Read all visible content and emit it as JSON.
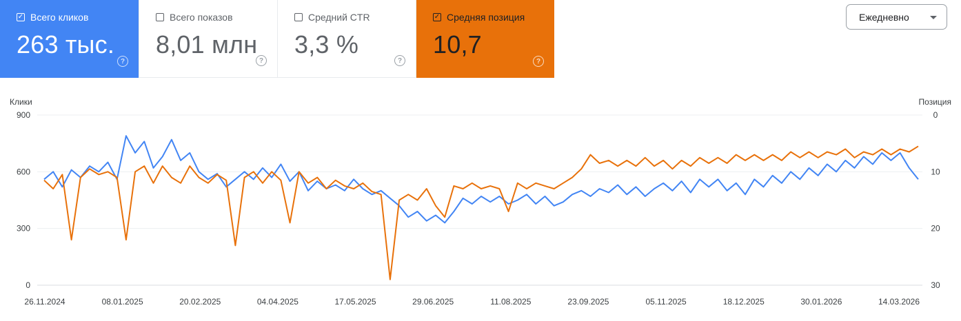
{
  "metrics": [
    {
      "label": "Всего кликов",
      "value": "263 тыс.",
      "checked": true,
      "color": "#4285f4"
    },
    {
      "label": "Всего показов",
      "value": "8,01 млн",
      "checked": false,
      "color": "#ffffff"
    },
    {
      "label": "Средний CTR",
      "value": "3,3 %",
      "checked": false,
      "color": "#ffffff"
    },
    {
      "label": "Средняя позиция",
      "value": "10,7",
      "checked": true,
      "color": "#e8710a"
    }
  ],
  "help_icon": "help-circle-icon",
  "dropdown": {
    "label": "Ежедневно",
    "icon": "caret-down-icon"
  },
  "chart_data": {
    "type": "line",
    "left_axis_title": "Клики",
    "right_axis_title": "Позиция",
    "left_ticks": [
      "900",
      "600",
      "300",
      "0"
    ],
    "right_ticks": [
      "0",
      "10",
      "20",
      "30"
    ],
    "ylim_left": [
      0,
      900
    ],
    "ylim_right_inverted": [
      0,
      30
    ],
    "x_ticks": [
      "26.11.2024",
      "08.01.2025",
      "20.02.2025",
      "04.04.2025",
      "17.05.2025",
      "29.06.2025",
      "11.08.2025",
      "23.09.2025",
      "05.11.2025",
      "18.12.2025",
      "30.01.2026",
      "14.03.2026"
    ],
    "x_range": [
      "2024-11-26",
      "2026-03-21"
    ],
    "grid": true,
    "series": [
      {
        "axis": "left",
        "color": "#4285f4",
        "points": [
          [
            "2024-11-26",
            560
          ],
          [
            "2024-12-01",
            600
          ],
          [
            "2024-12-06",
            520
          ],
          [
            "2024-12-11",
            610
          ],
          [
            "2024-12-16",
            570
          ],
          [
            "2024-12-21",
            630
          ],
          [
            "2024-12-26",
            600
          ],
          [
            "2024-12-31",
            650
          ],
          [
            "2025-01-05",
            560
          ],
          [
            "2025-01-10",
            790
          ],
          [
            "2025-01-15",
            700
          ],
          [
            "2025-01-20",
            760
          ],
          [
            "2025-01-25",
            620
          ],
          [
            "2025-01-30",
            680
          ],
          [
            "2025-02-04",
            770
          ],
          [
            "2025-02-09",
            660
          ],
          [
            "2025-02-14",
            700
          ],
          [
            "2025-02-19",
            600
          ],
          [
            "2025-02-24",
            560
          ],
          [
            "2025-03-01",
            590
          ],
          [
            "2025-03-06",
            520
          ],
          [
            "2025-03-11",
            560
          ],
          [
            "2025-03-16",
            600
          ],
          [
            "2025-03-21",
            560
          ],
          [
            "2025-03-26",
            620
          ],
          [
            "2025-03-31",
            570
          ],
          [
            "2025-04-05",
            640
          ],
          [
            "2025-04-10",
            550
          ],
          [
            "2025-04-15",
            600
          ],
          [
            "2025-04-20",
            500
          ],
          [
            "2025-04-25",
            550
          ],
          [
            "2025-04-30",
            510
          ],
          [
            "2025-05-05",
            530
          ],
          [
            "2025-05-10",
            500
          ],
          [
            "2025-05-15",
            560
          ],
          [
            "2025-05-20",
            510
          ],
          [
            "2025-05-25",
            480
          ],
          [
            "2025-05-30",
            500
          ],
          [
            "2025-06-04",
            460
          ],
          [
            "2025-06-09",
            420
          ],
          [
            "2025-06-14",
            360
          ],
          [
            "2025-06-19",
            390
          ],
          [
            "2025-06-24",
            340
          ],
          [
            "2025-06-29",
            370
          ],
          [
            "2025-07-04",
            330
          ],
          [
            "2025-07-09",
            390
          ],
          [
            "2025-07-14",
            460
          ],
          [
            "2025-07-19",
            430
          ],
          [
            "2025-07-24",
            470
          ],
          [
            "2025-07-29",
            440
          ],
          [
            "2025-08-03",
            470
          ],
          [
            "2025-08-08",
            430
          ],
          [
            "2025-08-13",
            450
          ],
          [
            "2025-08-18",
            480
          ],
          [
            "2025-08-23",
            430
          ],
          [
            "2025-08-28",
            470
          ],
          [
            "2025-09-02",
            420
          ],
          [
            "2025-09-07",
            440
          ],
          [
            "2025-09-12",
            480
          ],
          [
            "2025-09-17",
            500
          ],
          [
            "2025-09-22",
            470
          ],
          [
            "2025-09-27",
            510
          ],
          [
            "2025-10-02",
            490
          ],
          [
            "2025-10-07",
            530
          ],
          [
            "2025-10-12",
            480
          ],
          [
            "2025-10-17",
            520
          ],
          [
            "2025-10-22",
            470
          ],
          [
            "2025-10-27",
            510
          ],
          [
            "2025-11-01",
            540
          ],
          [
            "2025-11-06",
            500
          ],
          [
            "2025-11-11",
            550
          ],
          [
            "2025-11-16",
            490
          ],
          [
            "2025-11-21",
            560
          ],
          [
            "2025-11-26",
            520
          ],
          [
            "2025-12-01",
            560
          ],
          [
            "2025-12-06",
            500
          ],
          [
            "2025-12-11",
            540
          ],
          [
            "2025-12-16",
            480
          ],
          [
            "2025-12-21",
            560
          ],
          [
            "2025-12-26",
            520
          ],
          [
            "2025-12-31",
            580
          ],
          [
            "2026-01-05",
            540
          ],
          [
            "2026-01-10",
            600
          ],
          [
            "2026-01-15",
            560
          ],
          [
            "2026-01-20",
            620
          ],
          [
            "2026-01-25",
            580
          ],
          [
            "2026-01-30",
            640
          ],
          [
            "2026-02-04",
            600
          ],
          [
            "2026-02-09",
            660
          ],
          [
            "2026-02-14",
            620
          ],
          [
            "2026-02-19",
            680
          ],
          [
            "2026-02-24",
            640
          ],
          [
            "2026-03-01",
            700
          ],
          [
            "2026-03-06",
            660
          ],
          [
            "2026-03-11",
            700
          ],
          [
            "2026-03-16",
            620
          ],
          [
            "2026-03-21",
            560
          ]
        ]
      },
      {
        "axis": "right",
        "color": "#e8710a",
        "points": [
          [
            "2024-11-26",
            11.5
          ],
          [
            "2024-12-01",
            13
          ],
          [
            "2024-12-06",
            10.5
          ],
          [
            "2024-12-11",
            22
          ],
          [
            "2024-12-16",
            11
          ],
          [
            "2024-12-21",
            9.5
          ],
          [
            "2024-12-26",
            10.5
          ],
          [
            "2024-12-31",
            10
          ],
          [
            "2025-01-05",
            11
          ],
          [
            "2025-01-10",
            22
          ],
          [
            "2025-01-15",
            10
          ],
          [
            "2025-01-20",
            9
          ],
          [
            "2025-01-25",
            12
          ],
          [
            "2025-01-30",
            9
          ],
          [
            "2025-02-04",
            11
          ],
          [
            "2025-02-09",
            12
          ],
          [
            "2025-02-14",
            9
          ],
          [
            "2025-02-19",
            11
          ],
          [
            "2025-02-24",
            12
          ],
          [
            "2025-03-01",
            10.5
          ],
          [
            "2025-03-06",
            11.5
          ],
          [
            "2025-03-11",
            23
          ],
          [
            "2025-03-16",
            11
          ],
          [
            "2025-03-21",
            10
          ],
          [
            "2025-03-26",
            12
          ],
          [
            "2025-03-31",
            10
          ],
          [
            "2025-04-05",
            11.5
          ],
          [
            "2025-04-10",
            19
          ],
          [
            "2025-04-15",
            10
          ],
          [
            "2025-04-20",
            12
          ],
          [
            "2025-04-25",
            11
          ],
          [
            "2025-04-30",
            13
          ],
          [
            "2025-05-05",
            11.5
          ],
          [
            "2025-05-10",
            12.5
          ],
          [
            "2025-05-15",
            13
          ],
          [
            "2025-05-20",
            12
          ],
          [
            "2025-05-25",
            13.5
          ],
          [
            "2025-05-30",
            14
          ],
          [
            "2025-06-04",
            29
          ],
          [
            "2025-06-09",
            15
          ],
          [
            "2025-06-14",
            14
          ],
          [
            "2025-06-19",
            15
          ],
          [
            "2025-06-24",
            13
          ],
          [
            "2025-06-29",
            16
          ],
          [
            "2025-07-04",
            18
          ],
          [
            "2025-07-09",
            12.5
          ],
          [
            "2025-07-14",
            13
          ],
          [
            "2025-07-19",
            12
          ],
          [
            "2025-07-24",
            13
          ],
          [
            "2025-07-29",
            12.5
          ],
          [
            "2025-08-03",
            13
          ],
          [
            "2025-08-08",
            17
          ],
          [
            "2025-08-13",
            12
          ],
          [
            "2025-08-18",
            13
          ],
          [
            "2025-08-23",
            12
          ],
          [
            "2025-08-28",
            12.5
          ],
          [
            "2025-09-02",
            13
          ],
          [
            "2025-09-07",
            12
          ],
          [
            "2025-09-12",
            11
          ],
          [
            "2025-09-17",
            9.5
          ],
          [
            "2025-09-22",
            7
          ],
          [
            "2025-09-27",
            8.5
          ],
          [
            "2025-10-02",
            8
          ],
          [
            "2025-10-07",
            9
          ],
          [
            "2025-10-12",
            8
          ],
          [
            "2025-10-17",
            9
          ],
          [
            "2025-10-22",
            7.5
          ],
          [
            "2025-10-27",
            9
          ],
          [
            "2025-11-01",
            8
          ],
          [
            "2025-11-06",
            9.5
          ],
          [
            "2025-11-11",
            8
          ],
          [
            "2025-11-16",
            9
          ],
          [
            "2025-11-21",
            7.5
          ],
          [
            "2025-11-26",
            8.5
          ],
          [
            "2025-12-01",
            7.5
          ],
          [
            "2025-12-06",
            8.5
          ],
          [
            "2025-12-11",
            7
          ],
          [
            "2025-12-16",
            8
          ],
          [
            "2025-12-21",
            7
          ],
          [
            "2025-12-26",
            8
          ],
          [
            "2025-12-31",
            7
          ],
          [
            "2026-01-05",
            8
          ],
          [
            "2026-01-10",
            6.5
          ],
          [
            "2026-01-15",
            7.5
          ],
          [
            "2026-01-20",
            6.5
          ],
          [
            "2026-01-25",
            7.5
          ],
          [
            "2026-01-30",
            6.5
          ],
          [
            "2026-02-04",
            7
          ],
          [
            "2026-02-09",
            6
          ],
          [
            "2026-02-14",
            7.5
          ],
          [
            "2026-02-19",
            6.5
          ],
          [
            "2026-02-24",
            7
          ],
          [
            "2026-03-01",
            6
          ],
          [
            "2026-03-06",
            7
          ],
          [
            "2026-03-11",
            6
          ],
          [
            "2026-03-16",
            6.5
          ],
          [
            "2026-03-21",
            5.5
          ]
        ]
      }
    ]
  }
}
